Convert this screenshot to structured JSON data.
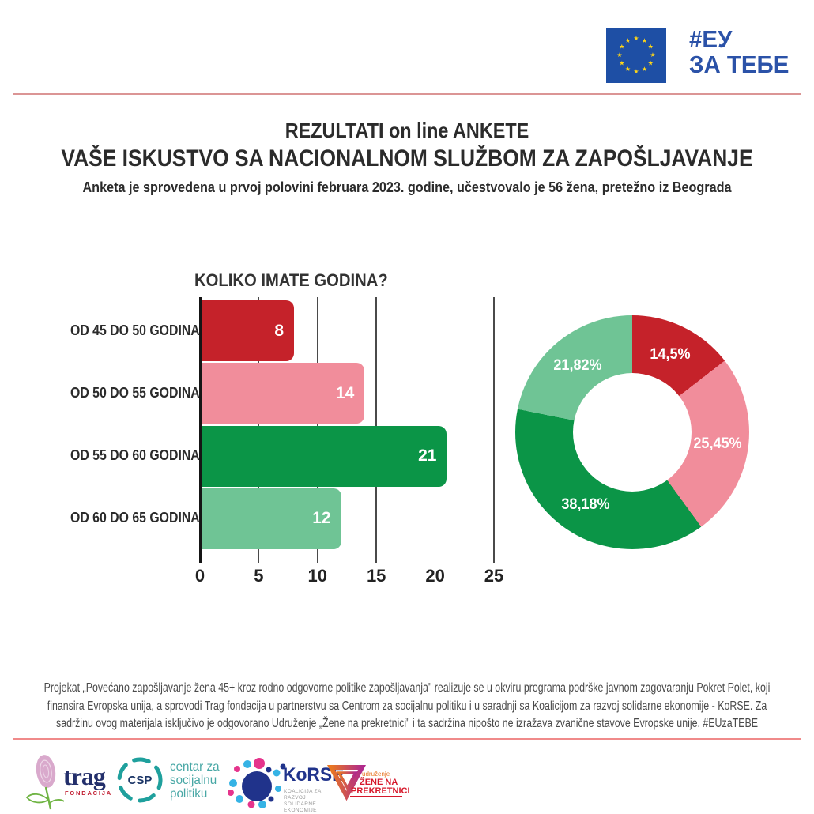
{
  "header": {
    "eu_hashtag_line1": "#ЕУ",
    "eu_hashtag_line2": "ЗА ТЕБЕ"
  },
  "title": {
    "line1": "REZULTATI on line ANKETE",
    "line2": "VAŠE ISKUSTVO SA NACIONALNOM SLUŽBOM ZA ZAPOŠLJAVANJE",
    "subtitle": "Anketa je sprovedena u prvoj polovini februara 2023. godine, učestvovalo je 56 žena, pretežno iz Beograda"
  },
  "chart_data": [
    {
      "type": "bar",
      "orientation": "horizontal",
      "title": "KOLIKO IMATE GODINA?",
      "categories": [
        "OD 45 DO 50 GODINA",
        "OD 50 DO 55 GODINA",
        "OD 55 DO 60 GODINA",
        "OD 60 DO 65 GODINA"
      ],
      "values": [
        8,
        14,
        21,
        12
      ],
      "colors": [
        "#c5222a",
        "#f18d9b",
        "#0b9547",
        "#6fc495"
      ],
      "xlim": [
        0,
        25
      ],
      "xticks": [
        0,
        5,
        10,
        15,
        20,
        25
      ],
      "grid": true,
      "value_labels_inside_bars": true
    },
    {
      "type": "pie",
      "subtype": "donut",
      "labels": [
        "14,5%",
        "25,45%",
        "38,18%",
        "21,82%"
      ],
      "values": [
        14.5,
        25.45,
        38.18,
        21.82
      ],
      "colors": [
        "#c5222a",
        "#f18d9b",
        "#0b9547",
        "#6fc495"
      ],
      "start_angle": "top",
      "direction": "clockwise",
      "legend": "none"
    }
  ],
  "brand_colors": {
    "eu_blue": "#2b52a8",
    "eu_flag_blue": "#1e4fa5",
    "eu_star_yellow": "#ffd617",
    "divider_pink": "#f08a8a"
  },
  "footer": {
    "disclaimer": "Projekat „Povećano zapošljavanje žena 45+ kroz rodno odgovorne politike zapošljavanja\" realizuje se u okviru programa podrške javnom zagovaranju Pokret Polet, koji finansira Evropska unija, a sprovodi Trag fondacija u partnerstvu sa Centrom za socijalnu politiku i u saradnji sa Koalicijom za razvoj solidarne ekonomije - KoRSE. Za sadržinu ovog materijala isključivo je odgovorano Udruženje „Žene na prekretnici\" i ta sadržina nipošto ne izražava zvanične stavove Evropske unije. #EUzaTEBE"
  },
  "logos": {
    "trag": {
      "name": "trag",
      "sub": "FONDACIJA"
    },
    "csp": {
      "abbr": "CSP",
      "text_lines": [
        "centar za",
        "socijalnu",
        "politiku"
      ]
    },
    "korse": {
      "name": "KoRSE",
      "tagline_line1": "KOALICIJA ZA RAZVOJ",
      "tagline_line2": "SOLIDARNE EKONOMIJE"
    },
    "zene": {
      "small": "udruženje",
      "line1": "ŽENE NA",
      "line2": "PREKRETNICI"
    }
  }
}
